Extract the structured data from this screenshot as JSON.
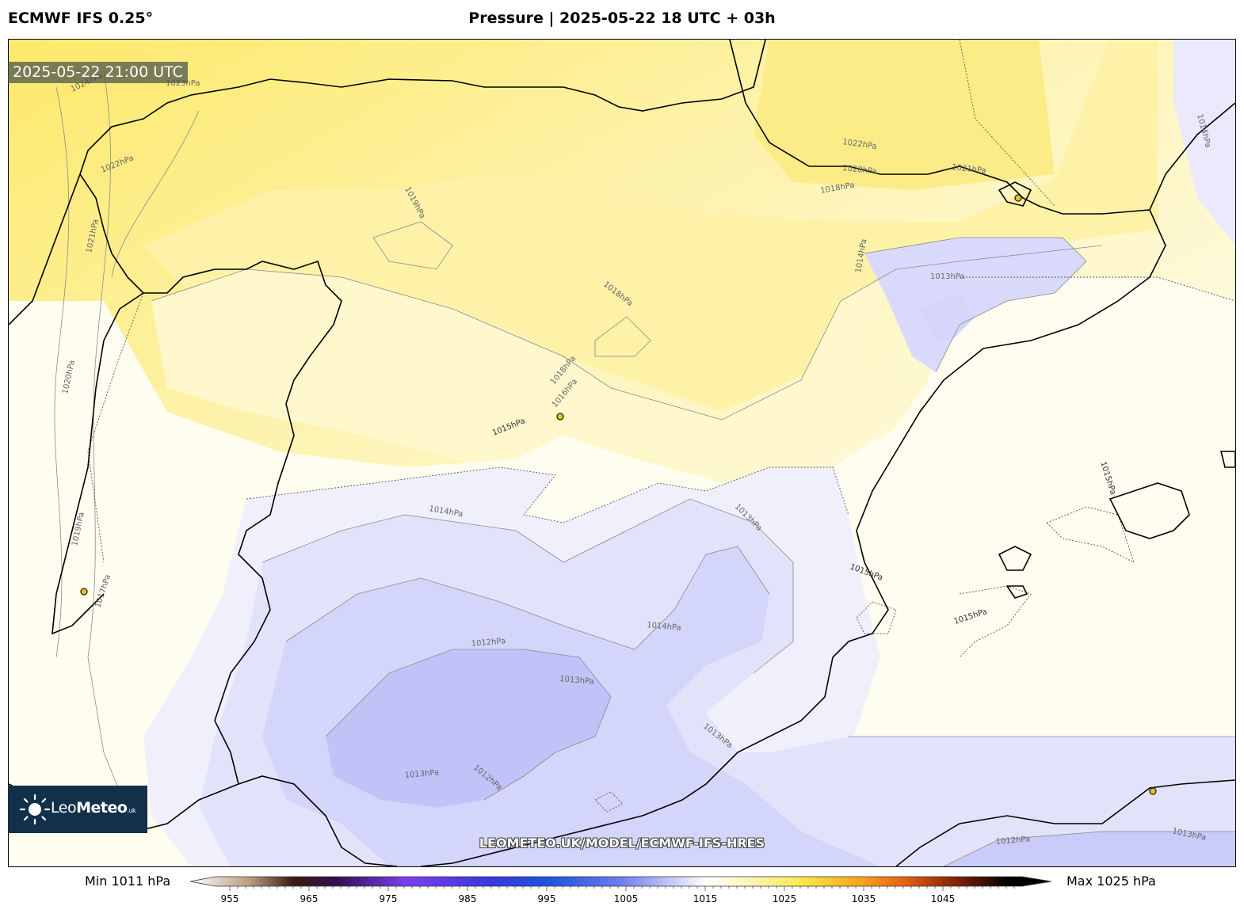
{
  "header": {
    "model": "ECMWF IFS 0.25°",
    "title": "Pressure | 2025-05-22 18 UTC + 03h"
  },
  "map": {
    "timestamp": "2025-05-22 21:00 UTC",
    "watermark": "LEOMETEO.UK/MODEL/ECMWF-IFS-HRES",
    "logo": {
      "brand_light": "Leo",
      "brand_bold": "Meteo",
      "tld": ".uk"
    },
    "isobar_labels": [
      {
        "text": "1024hPa",
        "style": "solid"
      },
      {
        "text": "1023hPa",
        "style": "solid"
      },
      {
        "text": "1022hPa",
        "style": "solid"
      },
      {
        "text": "1021hPa",
        "style": "solid"
      },
      {
        "text": "1020hPa",
        "style": "solid"
      },
      {
        "text": "1019hPa",
        "style": "solid"
      },
      {
        "text": "1019hPa",
        "style": "solid"
      },
      {
        "text": "1018hPa",
        "style": "solid"
      },
      {
        "text": "1018hPa",
        "style": "solid"
      },
      {
        "text": "1017hPa",
        "style": "solid"
      },
      {
        "text": "1016hPa",
        "style": "solid"
      },
      {
        "text": "1015hPa",
        "style": "dashed"
      },
      {
        "text": "1014hPa",
        "style": "solid"
      },
      {
        "text": "1014hPa",
        "style": "solid"
      },
      {
        "text": "1014hPa",
        "style": "solid"
      },
      {
        "text": "1014hPa",
        "style": "solid"
      },
      {
        "text": "1013hPa",
        "style": "solid"
      },
      {
        "text": "1013hPa",
        "style": "solid"
      },
      {
        "text": "1013hPa",
        "style": "solid"
      },
      {
        "text": "1013hPa",
        "style": "solid"
      },
      {
        "text": "1013hPa",
        "style": "solid"
      },
      {
        "text": "1013hPa",
        "style": "solid"
      },
      {
        "text": "1012hPa",
        "style": "solid"
      },
      {
        "text": "1012hPa",
        "style": "solid"
      },
      {
        "text": "1012hPa",
        "style": "solid"
      },
      {
        "text": "1015hPa",
        "style": "dashed"
      },
      {
        "text": "1015hPa",
        "style": "dashed"
      },
      {
        "text": "1015hPa",
        "style": "dashed"
      },
      {
        "text": "1022hPa",
        "style": "solid"
      },
      {
        "text": "1020hPa",
        "style": "solid"
      },
      {
        "text": "1021hPa",
        "style": "solid"
      },
      {
        "text": "1018hPa",
        "style": "solid"
      }
    ],
    "city_markers": [
      "marker",
      "marker",
      "marker",
      "marker"
    ]
  },
  "colorbar": {
    "min_label": "Min 1011 hPa",
    "max_label": "Max 1025 hPa",
    "range": [
      955,
      1055
    ],
    "ticks": [
      "955",
      "965",
      "975",
      "985",
      "995",
      "1005",
      "1015",
      "1025",
      "1035",
      "1045"
    ],
    "stops": [
      {
        "value": 955,
        "color": "#ffffff"
      },
      {
        "value": 962,
        "color": "#b89a80"
      },
      {
        "value": 967,
        "color": "#3a1a10"
      },
      {
        "value": 972,
        "color": "#301050"
      },
      {
        "value": 980,
        "color": "#7b3ff0"
      },
      {
        "value": 990,
        "color": "#3b36e0"
      },
      {
        "value": 997,
        "color": "#1f55e0"
      },
      {
        "value": 1005,
        "color": "#6f7cf0"
      },
      {
        "value": 1011,
        "color": "#c8caf8"
      },
      {
        "value": 1015,
        "color": "#ffffff"
      },
      {
        "value": 1020,
        "color": "#fdf6b4"
      },
      {
        "value": 1026,
        "color": "#fde84c"
      },
      {
        "value": 1033,
        "color": "#f7a21c"
      },
      {
        "value": 1038,
        "color": "#e86010"
      },
      {
        "value": 1044,
        "color": "#802008"
      },
      {
        "value": 1050,
        "color": "#000000"
      }
    ]
  }
}
